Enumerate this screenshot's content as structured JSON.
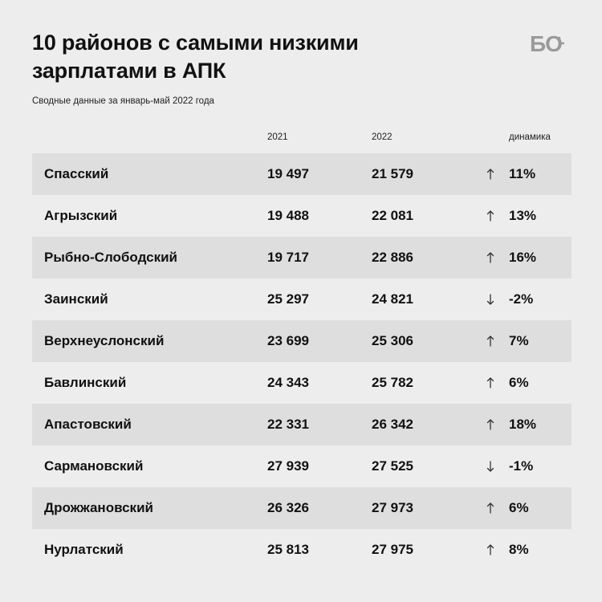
{
  "header": {
    "title": "10 районов с самыми низкими\nзарплатами в АПК",
    "subtitle": "Сводные данные за январь-май 2022 года",
    "logo_text": "БО"
  },
  "chart_data": {
    "type": "table",
    "columns": [
      "2021",
      "2022",
      "динамика"
    ],
    "rows": [
      {
        "name": "Спасский",
        "v2021": "19 497",
        "v2022": "21 579",
        "trend": "up",
        "change": "11%"
      },
      {
        "name": "Агрызский",
        "v2021": "19 488",
        "v2022": "22 081",
        "trend": "up",
        "change": "13%"
      },
      {
        "name": "Рыбно-Слободский",
        "v2021": "19 717",
        "v2022": "22 886",
        "trend": "up",
        "change": "16%"
      },
      {
        "name": "Заинский",
        "v2021": "25 297",
        "v2022": "24 821",
        "trend": "down",
        "change": "-2%"
      },
      {
        "name": "Верхнеуслонский",
        "v2021": "23 699",
        "v2022": "25 306",
        "trend": "up",
        "change": "7%"
      },
      {
        "name": "Бавлинский",
        "v2021": "24 343",
        "v2022": "25 782",
        "trend": "up",
        "change": "6%"
      },
      {
        "name": "Апастовский",
        "v2021": "22 331",
        "v2022": "26 342",
        "trend": "up",
        "change": "18%"
      },
      {
        "name": "Сармановский",
        "v2021": "27 939",
        "v2022": "27 525",
        "trend": "down",
        "change": "-1%"
      },
      {
        "name": "Дрожжановский",
        "v2021": "26 326",
        "v2022": "27 973",
        "trend": "up",
        "change": "6%"
      },
      {
        "name": "Нурлатский",
        "v2021": "25 813",
        "v2022": "27 975",
        "trend": "up",
        "change": "8%"
      }
    ]
  },
  "colors": {
    "background": "#ededed",
    "row_shade": "#dedede",
    "text": "#111111",
    "logo": "#9a9a9a"
  }
}
